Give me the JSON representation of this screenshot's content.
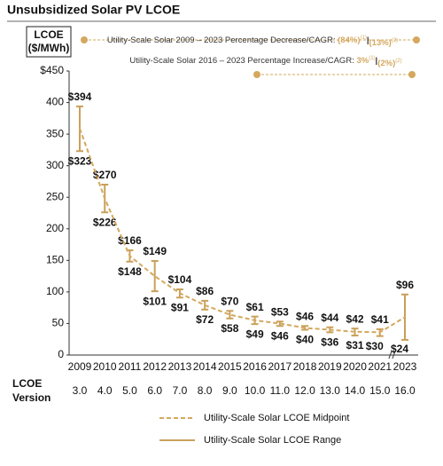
{
  "chart_data": {
    "type": "range_line",
    "title": "Unsubsidized Solar PV LCOE",
    "ylabel_lines": [
      "LCOE",
      "($/MWh)"
    ],
    "row_label_lines": [
      "LCOE",
      "Version"
    ],
    "categories": [
      "2009",
      "2010",
      "2011",
      "2012",
      "2013",
      "2014",
      "2015",
      "2016",
      "2017",
      "2018",
      "2019",
      "2020",
      "2021",
      "2023"
    ],
    "row_labels": [
      "3.0",
      "4.0",
      "5.0",
      "6.0",
      "7.0",
      "8.0",
      "9.0",
      "10.0",
      "11.0",
      "12.0",
      "13.0",
      "14.0",
      "15.0",
      "16.0"
    ],
    "ylim": [
      0,
      450
    ],
    "yticks": [
      0,
      50,
      100,
      150,
      200,
      250,
      300,
      350,
      400,
      {
        "value": 450,
        "label": "$450"
      }
    ],
    "annotations": [
      {
        "text": "Utility-Scale Solar 2009 – 2023 Percentage Decrease/CAGR:",
        "parts": [
          "(84%)",
          "(1)",
          "|",
          "(13%)",
          "(2)"
        ]
      },
      {
        "text": "Utility-Scale Solar 2016 – 2023 Percentage Increase/CAGR:",
        "parts": [
          "3%",
          "(1)",
          "|",
          "(2%)",
          "(2)"
        ]
      }
    ],
    "series": [
      {
        "name": "Utility-Scale Solar LCOE Midpoint",
        "color": "#d4a85e",
        "values": [
          359,
          248,
          157,
          125,
          98,
          79,
          64,
          55,
          50,
          43,
          40,
          37,
          36,
          60
        ]
      },
      {
        "name": "Utility-Scale Solar LCOE Range",
        "color": "#c9a15a",
        "high": [
          394,
          270,
          166,
          149,
          104,
          86,
          70,
          61,
          53,
          46,
          44,
          42,
          41,
          96
        ],
        "high_labels": [
          "$394",
          "$270",
          "$166",
          "$149",
          "$104",
          "$86",
          "$70",
          "$61",
          "$53",
          "$46",
          "$44",
          "$42",
          "$41",
          "$96"
        ],
        "low": [
          323,
          226,
          148,
          101,
          91,
          72,
          58,
          49,
          46,
          40,
          36,
          31,
          30,
          24
        ],
        "low_labels": [
          "$323",
          "$226",
          "$148",
          "$101",
          "$91",
          "$72",
          "$58",
          "$49",
          "$46",
          "$40",
          "$36",
          "$31",
          "$30",
          "$24"
        ]
      }
    ]
  }
}
